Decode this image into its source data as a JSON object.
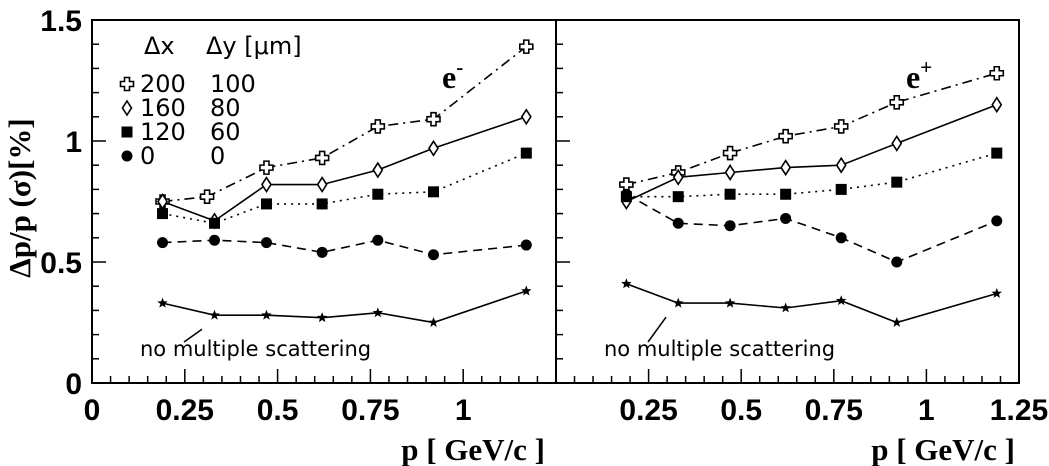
{
  "chart_data": {
    "type": "line",
    "ylabel": "Δp/p (σ)[%]",
    "ylim": [
      0,
      1.5
    ],
    "yticks": [
      "0",
      "0.5",
      "1",
      "1.5"
    ],
    "legend": {
      "header": {
        "dx": "Δx",
        "dy": "Δy [μm]"
      },
      "entries": [
        {
          "marker": "open-cross",
          "dx": "200",
          "dy": "100",
          "style": "dash-dot"
        },
        {
          "marker": "open-diamond",
          "dx": "160",
          "dy": "80",
          "style": "solid"
        },
        {
          "marker": "filled-square",
          "dx": "120",
          "dy": "60",
          "style": "dotted"
        },
        {
          "marker": "filled-circle",
          "dx": "0",
          "dy": "0",
          "style": "dashed"
        }
      ],
      "placement": "top-left"
    },
    "panels": [
      {
        "label": "e",
        "label_sup": "-",
        "xlabel": "",
        "xlim": [
          0,
          1.25
        ],
        "xticks": [
          "0",
          "0.25",
          "0.5",
          "0.75",
          "1"
        ],
        "note": "no multiple scattering",
        "series": [
          {
            "style": "dash-dot",
            "marker": "open-cross",
            "x": [
              0.19,
              0.31,
              0.47,
              0.62,
              0.77,
              0.92,
              1.17
            ],
            "y": [
              0.75,
              0.77,
              0.89,
              0.93,
              1.06,
              1.09,
              1.39
            ]
          },
          {
            "style": "solid",
            "marker": "open-diamond",
            "x": [
              0.19,
              0.33,
              0.47,
              0.62,
              0.77,
              0.92,
              1.17
            ],
            "y": [
              0.75,
              0.67,
              0.82,
              0.82,
              0.88,
              0.97,
              1.1
            ]
          },
          {
            "style": "dotted",
            "marker": "filled-square",
            "x": [
              0.19,
              0.33,
              0.47,
              0.62,
              0.77,
              0.92,
              1.17
            ],
            "y": [
              0.7,
              0.66,
              0.74,
              0.74,
              0.78,
              0.79,
              0.95
            ]
          },
          {
            "style": "dashed",
            "marker": "filled-circle",
            "x": [
              0.19,
              0.33,
              0.47,
              0.62,
              0.77,
              0.92,
              1.17
            ],
            "y": [
              0.58,
              0.59,
              0.58,
              0.54,
              0.59,
              0.53,
              0.57
            ]
          },
          {
            "style": "solid",
            "marker": "star",
            "x": [
              0.19,
              0.33,
              0.47,
              0.62,
              0.77,
              0.92,
              1.17
            ],
            "y": [
              0.33,
              0.28,
              0.28,
              0.27,
              0.29,
              0.25,
              0.38
            ]
          }
        ]
      },
      {
        "label": "e",
        "label_sup": "+",
        "xlabel": "p [ GeV/c ]",
        "xlim": [
          0,
          1.25
        ],
        "xticks": [
          "0.25",
          "0.5",
          "0.75",
          "1",
          "1.25"
        ],
        "note": "no multiple scattering",
        "series": [
          {
            "style": "dash-dot",
            "marker": "open-cross",
            "x": [
              0.19,
              0.33,
              0.47,
              0.62,
              0.77,
              0.92,
              1.19
            ],
            "y": [
              0.82,
              0.87,
              0.95,
              1.02,
              1.06,
              1.16,
              1.28
            ]
          },
          {
            "style": "solid",
            "marker": "open-diamond",
            "x": [
              0.19,
              0.33,
              0.47,
              0.62,
              0.77,
              0.92,
              1.19
            ],
            "y": [
              0.75,
              0.85,
              0.87,
              0.89,
              0.9,
              0.99,
              1.15
            ]
          },
          {
            "style": "dotted",
            "marker": "filled-square",
            "x": [
              0.19,
              0.33,
              0.47,
              0.62,
              0.77,
              0.92,
              1.19
            ],
            "y": [
              0.77,
              0.77,
              0.78,
              0.78,
              0.8,
              0.83,
              0.95
            ]
          },
          {
            "style": "dashed",
            "marker": "filled-circle",
            "x": [
              0.19,
              0.33,
              0.47,
              0.62,
              0.77,
              0.92,
              1.19
            ],
            "y": [
              0.78,
              0.66,
              0.65,
              0.68,
              0.6,
              0.5,
              0.67
            ]
          },
          {
            "style": "solid",
            "marker": "star",
            "x": [
              0.19,
              0.33,
              0.47,
              0.62,
              0.77,
              0.92,
              1.19
            ],
            "y": [
              0.41,
              0.33,
              0.33,
              0.31,
              0.34,
              0.25,
              0.37
            ]
          }
        ]
      }
    ],
    "bottom_xlabel": "p [ GeV/c ]",
    "grid": false
  }
}
